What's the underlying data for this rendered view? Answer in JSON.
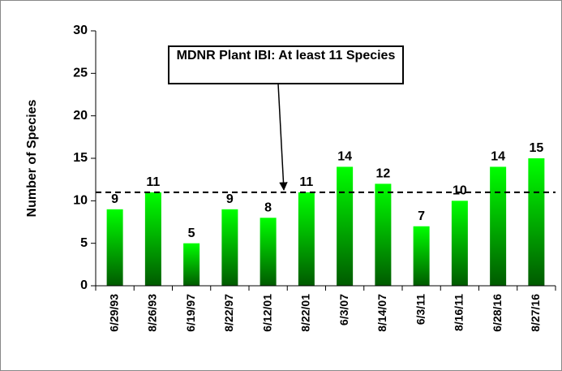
{
  "chart_data": {
    "type": "bar",
    "y_label": "Number of Species",
    "annotation": "MDNR Plant IBI:  At least 11 Species",
    "reference_line": 11,
    "categories": [
      "6/29/93",
      "8/26/93",
      "6/19/97",
      "8/22/97",
      "6/12/01",
      "8/22/01",
      "6/3/07",
      "8/14/07",
      "6/3/11",
      "8/16/11",
      "6/28/16",
      "8/27/16"
    ],
    "values": [
      9,
      11,
      5,
      9,
      8,
      11,
      14,
      12,
      7,
      10,
      14,
      15
    ],
    "color": "#00ff00",
    "ylim": [
      0,
      30
    ],
    "yticks": [
      0,
      5,
      10,
      15,
      20,
      25,
      30
    ],
    "grid": false
  }
}
